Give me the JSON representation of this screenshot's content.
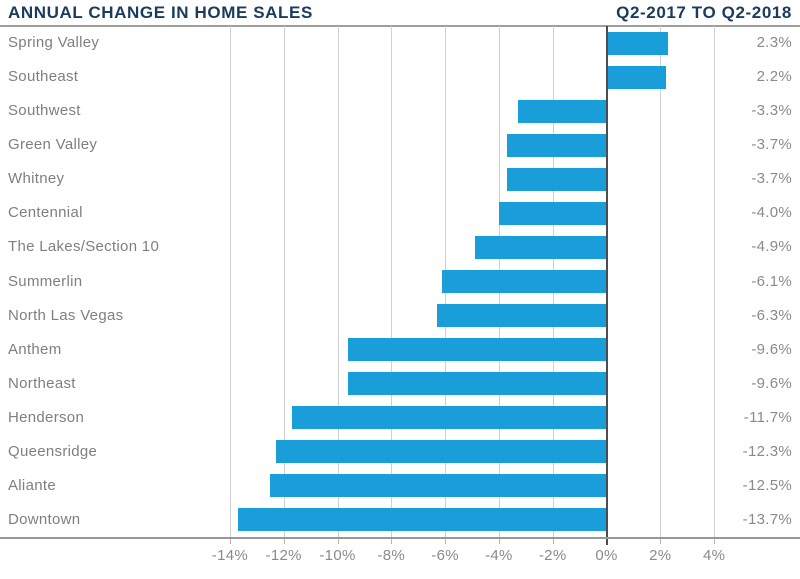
{
  "header": {
    "title": "ANNUAL CHANGE IN HOME SALES",
    "period": "Q2-2017 TO Q2-2018"
  },
  "chart_data": {
    "type": "bar",
    "orientation": "horizontal",
    "title": "ANNUAL CHANGE IN HOME SALES",
    "subtitle": "Q2-2017 TO Q2-2018",
    "categories": [
      "Spring Valley",
      "Southeast",
      "Southwest",
      "Green Valley",
      "Whitney",
      "Centennial",
      "The Lakes/Section 10",
      "Summerlin",
      "North Las Vegas",
      "Anthem",
      "Northeast",
      "Henderson",
      "Queensridge",
      "Aliante",
      "Downtown"
    ],
    "values": [
      2.3,
      2.2,
      -3.3,
      -3.7,
      -3.7,
      -4.0,
      -4.9,
      -6.1,
      -6.3,
      -9.6,
      -9.6,
      -11.7,
      -12.3,
      -12.5,
      -13.7
    ],
    "value_labels": [
      "2.3%",
      "2.2%",
      "-3.3%",
      "-3.7%",
      "-3.7%",
      "-4.0%",
      "-4.9%",
      "-6.1%",
      "-6.3%",
      "-9.6%",
      "-9.6%",
      "-11.7%",
      "-12.3%",
      "-12.5%",
      "-13.7%"
    ],
    "x_axis": {
      "min": -14,
      "max": 4,
      "step": 2,
      "tick_labels": [
        "-14%",
        "-12%",
        "-10%",
        "-8%",
        "-6%",
        "-4%",
        "-2%",
        "0%",
        "2%",
        "4%"
      ]
    },
    "grid": true,
    "legend": "none",
    "bar_color": "#1a9ed9"
  },
  "colors": {
    "title": "#1a3b5d",
    "bar": "#1a9ed9",
    "category_label": "#7f7f7f",
    "value_label": "#8a8a8a",
    "gridline": "#d0d0d0",
    "zero_line": "#4d4d4d",
    "axis_line": "#989898"
  }
}
